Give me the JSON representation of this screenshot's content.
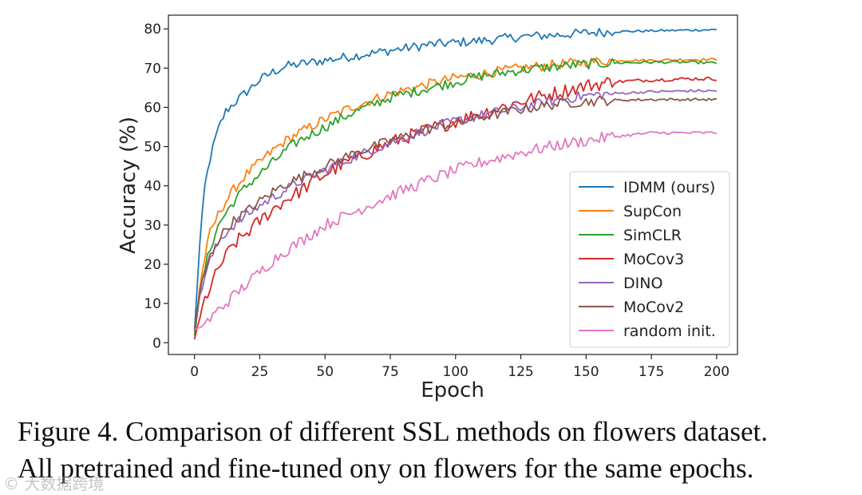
{
  "chart_data": {
    "type": "line",
    "xlabel": "Epoch",
    "ylabel": "Accuracy (%)",
    "xlim": [
      -10,
      208
    ],
    "ylim": [
      -3,
      83.5
    ],
    "xticks": [
      0,
      25,
      50,
      75,
      100,
      125,
      150,
      175,
      200
    ],
    "yticks": [
      0,
      10,
      20,
      30,
      40,
      50,
      60,
      70,
      80
    ],
    "legend_position": "lower-right",
    "x": [
      0,
      2,
      4,
      6,
      8,
      10,
      12,
      15,
      20,
      25,
      30,
      35,
      40,
      50,
      60,
      75,
      90,
      100,
      110,
      125,
      140,
      150,
      160,
      175,
      190,
      200
    ],
    "series": [
      {
        "name": "IDMM (ours)",
        "color": "#1f77b4",
        "noise": 1.2,
        "values": [
          3,
          25,
          40,
          47,
          52,
          56,
          59,
          61,
          64,
          67,
          69,
          70.5,
          71,
          72,
          73,
          74.5,
          76,
          76.5,
          77,
          78,
          78.5,
          79,
          79.3,
          79.5,
          79.7,
          79.8
        ]
      },
      {
        "name": "SupCon",
        "color": "#ff7f0e",
        "noise": 1.3,
        "values": [
          2,
          14,
          22,
          28,
          31,
          34,
          36,
          39,
          43,
          46,
          49,
          51.5,
          53.5,
          57,
          60,
          63.5,
          66,
          67.5,
          68.5,
          70,
          71,
          71.5,
          72,
          72,
          72.2,
          72.2
        ]
      },
      {
        "name": "SimCLR",
        "color": "#2ca02c",
        "noise": 1.3,
        "values": [
          2,
          12,
          19,
          24,
          28,
          31,
          33,
          36,
          40,
          43,
          46,
          49,
          51.5,
          55,
          58.5,
          62.5,
          65,
          66.5,
          68,
          69.5,
          70.5,
          71,
          71.3,
          71.5,
          71.5,
          71.3
        ]
      },
      {
        "name": "MoCov3",
        "color": "#d62728",
        "noise": 1.8,
        "values": [
          1,
          6,
          11,
          14,
          17,
          20,
          22,
          25,
          28,
          31,
          34,
          36.5,
          38.5,
          43,
          46.5,
          51,
          54.5,
          56.5,
          58.5,
          61.5,
          64,
          65.5,
          66.5,
          67,
          67.3,
          67.3
        ]
      },
      {
        "name": "DINO",
        "color": "#9467bd",
        "noise": 1.3,
        "values": [
          3,
          12,
          17,
          21,
          24,
          26.5,
          28,
          30,
          32.5,
          35,
          37,
          39,
          41,
          44,
          47,
          51,
          54.5,
          56.5,
          58,
          60,
          62,
          63,
          63.5,
          64,
          64.2,
          64.2
        ]
      },
      {
        "name": "MoCov2",
        "color": "#8c564b",
        "noise": 1.3,
        "values": [
          3,
          13,
          18,
          22,
          25,
          27,
          29,
          31,
          33.5,
          36,
          38.5,
          40.5,
          42,
          45,
          48,
          51.5,
          54.5,
          56,
          57.5,
          59.5,
          61,
          61.5,
          61.8,
          62,
          62,
          62
        ]
      },
      {
        "name": "random init.",
        "color": "#e377c2",
        "noise": 1.5,
        "values": [
          3,
          4,
          5,
          6,
          7.5,
          9,
          10,
          12,
          15,
          18,
          21,
          23.5,
          25.5,
          30,
          33,
          37.5,
          41.5,
          44,
          46,
          48.5,
          50.5,
          51.5,
          52.5,
          53.5,
          53.5,
          53.5
        ]
      }
    ]
  },
  "caption": {
    "line1": "Figure 4. Comparison of different SSL methods on flowers dataset.",
    "line2": "All pretrained and fine-tuned ony on flowers for the same epochs."
  },
  "watermark": "© 大数据跨境"
}
